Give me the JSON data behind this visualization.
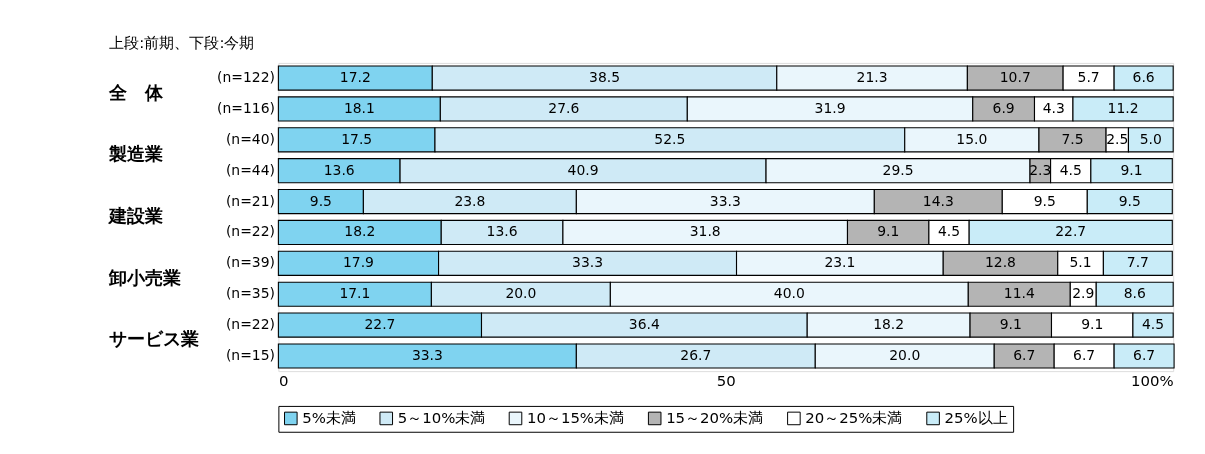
{
  "chart_data": {
    "type": "bar",
    "orientation": "horizontal",
    "stacked": true,
    "grid": false,
    "legend": "bottom",
    "categories": [
      "(n=122)",
      "(n=116)",
      "(n=40)",
      "(n=44)",
      "(n=21)",
      "(n=22)",
      "(n=39)",
      "(n=35)",
      "(n=22)",
      "(n=15)"
    ],
    "series": [
      {
        "name": "5%未満",
        "color": "#7fd3f0",
        "values": [
          17.2,
          18.1,
          17.5,
          13.6,
          9.5,
          18.2,
          17.9,
          17.1,
          22.7,
          33.3
        ],
        "value_labels": [
          "17.2",
          "18.1",
          "17.5",
          "13.6",
          "9.5",
          "18.2",
          "17.9",
          "17.1",
          "22.7",
          "33.3"
        ]
      },
      {
        "name": "5～10%未満",
        "color": "#cfeaf6",
        "values": [
          38.5,
          27.6,
          52.5,
          40.9,
          23.8,
          13.6,
          33.3,
          20.0,
          36.4,
          26.7
        ],
        "value_labels": [
          "38.5",
          "27.6",
          "52.5",
          "40.9",
          "23.8",
          "13.6",
          "33.3",
          "20.0",
          "36.4",
          "26.7"
        ]
      },
      {
        "name": "10～15%未満",
        "color": "#eaf6fc",
        "values": [
          21.3,
          31.9,
          15.0,
          29.5,
          33.3,
          31.8,
          23.1,
          40.0,
          18.2,
          20.0
        ],
        "value_labels": [
          "21.3",
          "31.9",
          "15.0",
          "29.5",
          "33.3",
          "31.8",
          "23.1",
          "40.0",
          "18.2",
          "20.0"
        ]
      },
      {
        "name": "15～20%未満",
        "color": "#b4b4b4",
        "values": [
          10.7,
          6.9,
          7.5,
          2.3,
          14.3,
          9.1,
          12.8,
          11.4,
          9.1,
          6.7
        ],
        "value_labels": [
          "10.7",
          "6.9",
          "7.5",
          "2.3",
          "14.3",
          "9.1",
          "12.8",
          "11.4",
          "9.1",
          "6.7"
        ]
      },
      {
        "name": "20～25%未満",
        "color": "#ffffff",
        "values": [
          5.7,
          4.3,
          2.5,
          4.5,
          9.5,
          4.5,
          5.1,
          2.9,
          9.1,
          6.7
        ],
        "value_labels": [
          "5.7",
          "4.3",
          "2.5",
          "4.5",
          "9.5",
          "4.5",
          "5.1",
          "2.9",
          "9.1",
          "6.7"
        ]
      },
      {
        "name": "25%以上",
        "color": "#c9ecf8",
        "values": [
          6.6,
          11.2,
          5.0,
          9.1,
          9.5,
          22.7,
          7.7,
          8.6,
          4.5,
          6.7
        ],
        "value_labels": [
          "6.6",
          "11.2",
          "5.0",
          "9.1",
          "9.5",
          "22.7",
          "7.7",
          "8.6",
          "4.5",
          "6.7"
        ]
      }
    ],
    "xlim": [
      0,
      100
    ],
    "xticks": [
      0,
      50,
      {
        "value": 100,
        "label": "100%"
      }
    ],
    "annotations": [
      "上段:前期、下段:今期",
      "全　体",
      "製造業",
      "建設業",
      "卸小売業",
      "サービス業"
    ]
  }
}
